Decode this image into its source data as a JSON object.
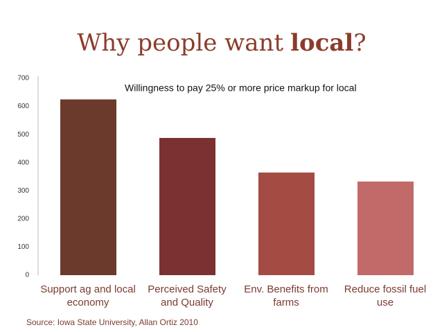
{
  "chart_data": {
    "type": "bar",
    "title_parts": {
      "prefix": "Why people want",
      "emphasis": "local",
      "suffix": "?"
    },
    "annotation": "Willingness to pay 25% or more price markup for local",
    "source": "Source: Iowa State University, Allan Ortiz 2010",
    "categories": [
      "Support ag and local economy",
      "Perceived Safety and Quality",
      "Env. Benefits from farms",
      "Reduce fossil fuel use"
    ],
    "values": [
      625,
      488,
      365,
      333
    ],
    "colors": [
      "#6b3a2c",
      "#7b3131",
      "#a44b43",
      "#c26a69"
    ],
    "ylim": [
      0,
      700
    ],
    "yticks": [
      0,
      100,
      200,
      300,
      400,
      500,
      600,
      700
    ],
    "grid": false
  }
}
